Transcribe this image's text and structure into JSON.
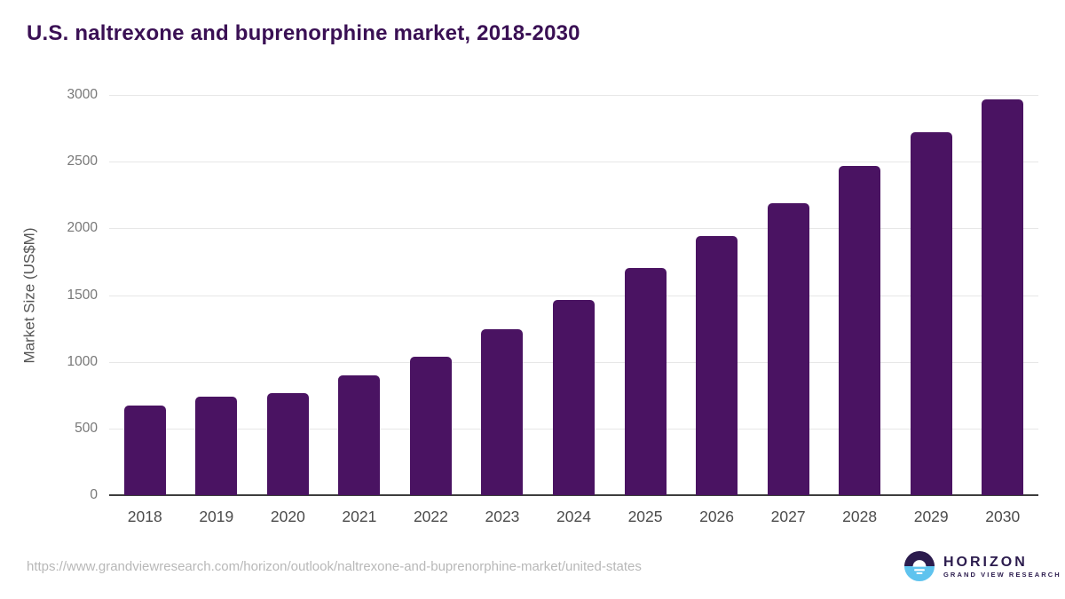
{
  "title": "U.S. naltrexone and buprenorphine market, 2018-2030",
  "chart_data": {
    "type": "bar",
    "categories": [
      "2018",
      "2019",
      "2020",
      "2021",
      "2022",
      "2023",
      "2024",
      "2025",
      "2026",
      "2027",
      "2028",
      "2029",
      "2030"
    ],
    "values": [
      670,
      740,
      765,
      900,
      1040,
      1245,
      1465,
      1700,
      1945,
      2190,
      2470,
      2720,
      2970
    ],
    "title": "U.S. naltrexone and buprenorphine market, 2018-2030",
    "xlabel": "",
    "ylabel": "Market Size (US$M)",
    "ylim": [
      0,
      3000
    ],
    "yticks": [
      0,
      500,
      1000,
      1500,
      2000,
      2500,
      3000
    ],
    "grid": true,
    "legend": "none",
    "bar_color": "#4a1362"
  },
  "footer": {
    "source_url": "https://www.grandviewresearch.com/horizon/outlook/naltrexone-and-buprenorphine-market/united-states",
    "logo": {
      "name": "HORIZON",
      "subtitle": "GRAND VIEW RESEARCH"
    }
  },
  "colors": {
    "title_text": "#3a1054",
    "bar": "#4a1362",
    "gridline": "#e7e7e7",
    "axis_line": "#3d3d3d",
    "logo_purple": "#2b1b4d",
    "logo_blue": "#5fc3ee"
  }
}
